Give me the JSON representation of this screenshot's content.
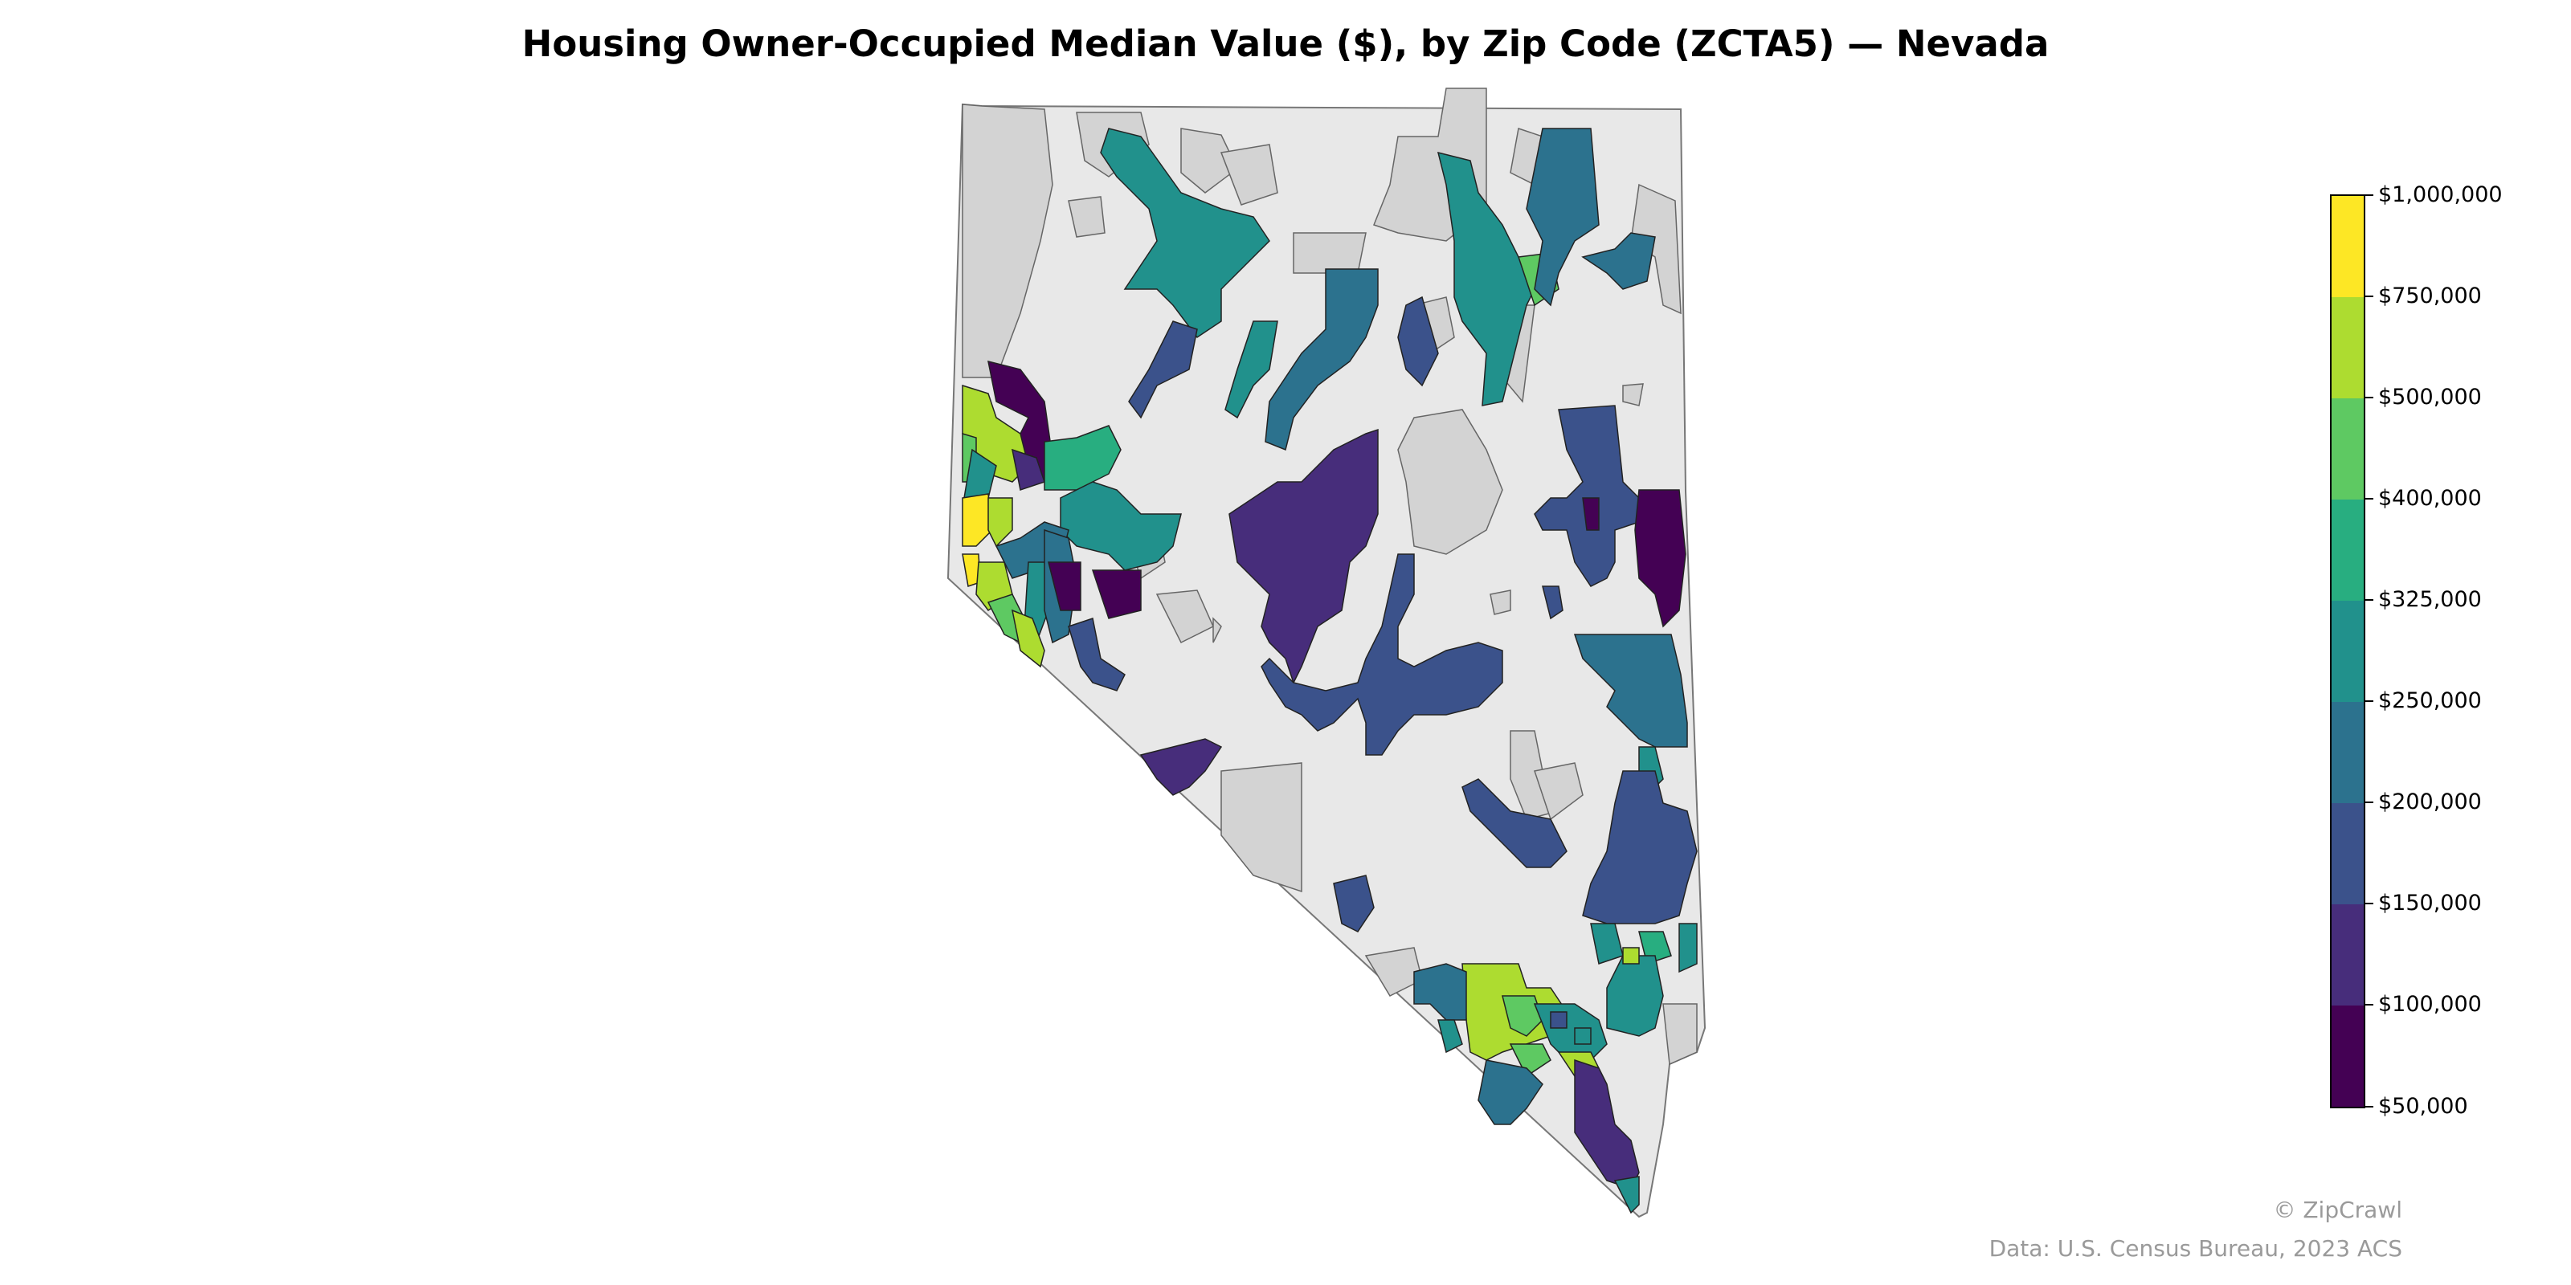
{
  "title": "Housing Owner-Occupied Median Value ($), by Zip Code (ZCTA5) — Nevada",
  "legend": {
    "colors": [
      "#fde725",
      "#addc30",
      "#5ec962",
      "#28ae80",
      "#21918c",
      "#2c728e",
      "#3b528b",
      "#472d7b",
      "#440154"
    ],
    "ticks": [
      "$1,000,000",
      "$750,000",
      "$500,000",
      "$400,000",
      "$325,000",
      "$250,000",
      "$200,000",
      "$150,000",
      "$100,000",
      "$50,000"
    ]
  },
  "credit": "© ZipCrawl",
  "source": "Data: U.S. Census Bureau, 2023 ACS",
  "palette": {
    "state_fill": "#e8e8e8",
    "nodata_fill": "#d3d3d3",
    "border": "#555555"
  }
}
